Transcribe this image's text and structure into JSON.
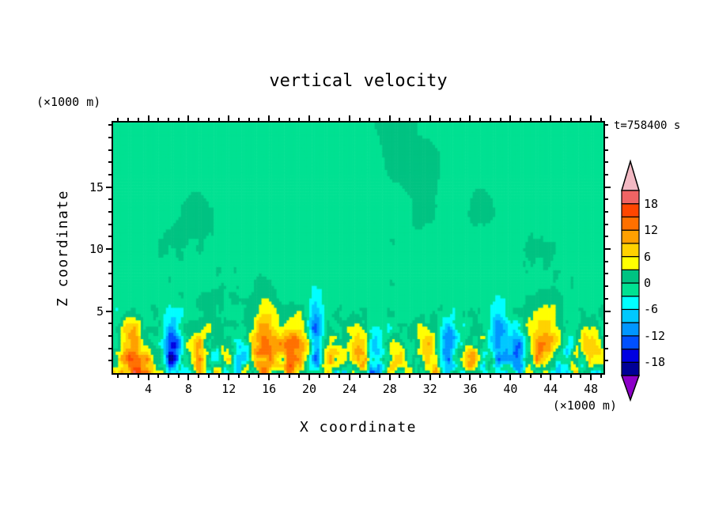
{
  "chart_data": {
    "type": "heatmap",
    "title": "vertical velocity",
    "xlabel": "X coordinate",
    "ylabel": "Z coordinate",
    "x_unit": "(×1000 m)",
    "z_unit": "(×1000 m)",
    "time_label": "t=758400 s",
    "x_domain": [
      0.5,
      49.25
    ],
    "z_domain": [
      0,
      20.2
    ],
    "x_ticks": [
      4,
      8,
      12,
      16,
      20,
      24,
      28,
      32,
      36,
      40,
      44,
      48
    ],
    "x_minor_step": 1,
    "z_ticks": [
      5,
      10,
      15
    ],
    "z_minor_step": 1,
    "colorbar": {
      "levels": [
        -21,
        -18,
        -15,
        -12,
        -9,
        -6,
        -3,
        0,
        3,
        6,
        9,
        12,
        15,
        18,
        21
      ],
      "colors": [
        "#8c00c8",
        "#000096",
        "#0000e1",
        "#0050ff",
        "#0096ff",
        "#00c8ff",
        "#00ffff",
        "#00e192",
        "#00c382",
        "#ffff00",
        "#ffd200",
        "#ffa000",
        "#ff7000",
        "#ff4600",
        "#f06464",
        "#f2b9c3"
      ],
      "labels": [
        18,
        12,
        6,
        0,
        -6,
        -12,
        -18
      ]
    },
    "field": {
      "base": -0.9,
      "patch_noise": [
        {
          "amp": 2.6,
          "fx": 0.1,
          "fz": 0.16,
          "ox": 5.0,
          "oz": 2.0
        },
        {
          "amp": 1.4,
          "fx": 0.35,
          "fz": 0.3,
          "ox": 9.0,
          "oz": 7.0
        }
      ],
      "surface_noise": [
        {
          "amp": 2.0,
          "fx": 1.1,
          "fz": 0.8,
          "ox": 3.0,
          "oz": 1.0
        },
        {
          "amp": 1.2,
          "fx": 2.3,
          "fz": 1.7,
          "ox": 8.0,
          "oz": 4.0
        }
      ],
      "surface_scale": 9,
      "surface_decay": 3.0,
      "cells": [
        {
          "x": 2.3,
          "z": 2.2,
          "sx": 0.9,
          "sz": 1.9,
          "amp": 12
        },
        {
          "x": 4.0,
          "z": 1.0,
          "sx": 0.6,
          "sz": 0.8,
          "amp": 5
        },
        {
          "x": 6.4,
          "z": 2.0,
          "sx": 0.7,
          "sz": 1.6,
          "amp": -14
        },
        {
          "x": 9.3,
          "z": 1.6,
          "sx": 0.8,
          "sz": 1.3,
          "amp": 8
        },
        {
          "x": 12.2,
          "z": 1.1,
          "sx": 0.6,
          "sz": 0.9,
          "amp": 7
        },
        {
          "x": 13.6,
          "z": 1.4,
          "sx": 0.5,
          "sz": 1.0,
          "amp": -8
        },
        {
          "x": 15.6,
          "z": 2.6,
          "sx": 1.0,
          "sz": 2.3,
          "amp": 12
        },
        {
          "x": 18.7,
          "z": 2.0,
          "sx": 1.1,
          "sz": 1.8,
          "amp": 13
        },
        {
          "x": 20.6,
          "z": 2.7,
          "sx": 0.5,
          "sz": 2.0,
          "amp": -13
        },
        {
          "x": 22.4,
          "z": 1.4,
          "sx": 0.8,
          "sz": 1.1,
          "amp": 8
        },
        {
          "x": 24.9,
          "z": 1.8,
          "sx": 0.8,
          "sz": 1.5,
          "amp": 9
        },
        {
          "x": 26.9,
          "z": 2.0,
          "sx": 0.8,
          "sz": 1.5,
          "amp": -9
        },
        {
          "x": 28.3,
          "z": 1.4,
          "sx": 0.7,
          "sz": 1.2,
          "amp": 8
        },
        {
          "x": 31.5,
          "z": 1.9,
          "sx": 0.9,
          "sz": 1.6,
          "amp": 10
        },
        {
          "x": 33.9,
          "z": 2.2,
          "sx": 0.7,
          "sz": 1.5,
          "amp": -10
        },
        {
          "x": 35.8,
          "z": 1.2,
          "sx": 0.8,
          "sz": 1.0,
          "amp": 8
        },
        {
          "x": 38.8,
          "z": 2.6,
          "sx": 0.7,
          "sz": 1.9,
          "amp": -12
        },
        {
          "x": 40.6,
          "z": 1.8,
          "sx": 0.5,
          "sz": 1.2,
          "amp": -9
        },
        {
          "x": 43.4,
          "z": 2.3,
          "sx": 1.0,
          "sz": 2.1,
          "amp": 11
        },
        {
          "x": 45.9,
          "z": 1.4,
          "sx": 0.6,
          "sz": 1.0,
          "amp": -8
        },
        {
          "x": 47.6,
          "z": 1.7,
          "sx": 0.9,
          "sz": 1.4,
          "amp": 10
        }
      ]
    }
  }
}
